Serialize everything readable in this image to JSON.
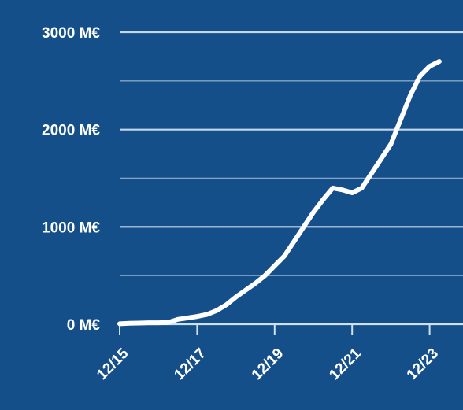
{
  "chart_data": {
    "type": "line",
    "title": "",
    "xlabel": "",
    "ylabel": "",
    "unit": "M€",
    "ylim": [
      0,
      3000
    ],
    "y_ticks": [
      "0 M€",
      "1000 M€",
      "2000 M€",
      "3000 M€"
    ],
    "x_ticks": [
      "12/15",
      "12/17",
      "12/19",
      "12/21",
      "12/23"
    ],
    "grid": true,
    "colors": {
      "background": "#154f8a",
      "line": "#ffffff",
      "grid": "#cfe0f1"
    },
    "series": [
      {
        "x": [
          "12/15",
          "03/16",
          "06/16",
          "09/16",
          "12/16",
          "03/17",
          "06/17",
          "09/17",
          "12/17",
          "03/18",
          "06/18",
          "09/18",
          "12/18",
          "03/19",
          "06/19",
          "09/19",
          "12/19",
          "03/20",
          "06/20",
          "09/20",
          "12/20",
          "03/21",
          "06/21",
          "09/21",
          "12/21",
          "03/22",
          "06/22",
          "09/22",
          "12/22",
          "03/23",
          "06/23",
          "09/23",
          "12/23",
          "03/24"
        ],
        "values": [
          5,
          10,
          12,
          15,
          15,
          18,
          50,
          65,
          80,
          100,
          140,
          200,
          280,
          350,
          420,
          500,
          600,
          700,
          850,
          1000,
          1150,
          1280,
          1400,
          1380,
          1350,
          1400,
          1550,
          1700,
          1850,
          2100,
          2350,
          2550,
          2650,
          2700
        ]
      }
    ]
  }
}
